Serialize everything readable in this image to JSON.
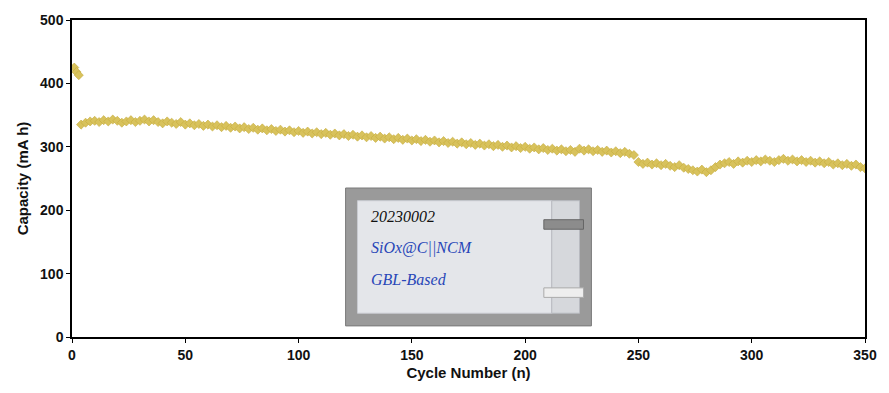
{
  "chart_data": {
    "type": "scatter",
    "x_label": "Cycle Number (n)",
    "y_label": "Capacity (mA h)",
    "color": "#d8c25c",
    "marker": "diamond",
    "grid": false,
    "xlim": [
      0,
      350
    ],
    "ylim": [
      0,
      500
    ],
    "xticks": [
      0,
      50,
      100,
      150,
      200,
      250,
      300,
      350
    ],
    "yticks": [
      0,
      100,
      200,
      300,
      400,
      500
    ],
    "annotations": [
      "20230002",
      "SiOx@C||NCM",
      "GBL-Based"
    ],
    "x": [
      1,
      2,
      3,
      4,
      6,
      8,
      10,
      12,
      14,
      16,
      18,
      20,
      22,
      24,
      26,
      28,
      30,
      32,
      34,
      36,
      38,
      40,
      42,
      44,
      46,
      48,
      50,
      52,
      54,
      56,
      58,
      60,
      62,
      64,
      66,
      68,
      70,
      72,
      74,
      76,
      78,
      80,
      82,
      84,
      86,
      88,
      90,
      92,
      94,
      96,
      98,
      100,
      102,
      104,
      106,
      108,
      110,
      112,
      114,
      116,
      118,
      120,
      122,
      124,
      126,
      128,
      130,
      132,
      134,
      136,
      138,
      140,
      142,
      144,
      146,
      148,
      150,
      152,
      154,
      156,
      158,
      160,
      162,
      164,
      166,
      168,
      170,
      172,
      174,
      176,
      178,
      180,
      182,
      184,
      186,
      188,
      190,
      192,
      194,
      196,
      198,
      200,
      202,
      204,
      206,
      208,
      210,
      212,
      214,
      216,
      218,
      220,
      222,
      224,
      226,
      228,
      230,
      232,
      234,
      236,
      238,
      240,
      242,
      244,
      246,
      248,
      250,
      252,
      254,
      256,
      258,
      260,
      262,
      264,
      266,
      268,
      270,
      272,
      274,
      276,
      278,
      280,
      282,
      284,
      286,
      288,
      290,
      292,
      294,
      296,
      298,
      300,
      302,
      304,
      306,
      308,
      310,
      312,
      314,
      316,
      318,
      320,
      322,
      324,
      326,
      328,
      330,
      332,
      334,
      336,
      338,
      340,
      342,
      344,
      346,
      348,
      350
    ],
    "values": [
      425,
      418,
      413,
      335,
      338,
      340,
      341,
      339,
      342,
      340,
      343,
      341,
      338,
      340,
      342,
      339,
      341,
      343,
      340,
      342,
      339,
      337,
      340,
      338,
      336,
      339,
      335,
      337,
      334,
      336,
      333,
      335,
      332,
      334,
      331,
      333,
      330,
      332,
      329,
      331,
      328,
      330,
      327,
      329,
      326,
      328,
      325,
      327,
      324,
      326,
      323,
      325,
      322,
      324,
      321,
      323,
      320,
      322,
      319,
      321,
      318,
      320,
      317,
      319,
      316,
      318,
      315,
      317,
      314,
      316,
      313,
      315,
      312,
      314,
      311,
      313,
      310,
      312,
      309,
      311,
      308,
      310,
      307,
      309,
      306,
      308,
      305,
      307,
      304,
      306,
      303,
      305,
      302,
      304,
      301,
      303,
      300,
      302,
      299,
      301,
      298,
      300,
      297,
      299,
      296,
      298,
      295,
      297,
      294,
      296,
      293,
      295,
      292,
      297,
      294,
      296,
      293,
      295,
      292,
      294,
      291,
      293,
      290,
      292,
      289,
      287,
      276,
      273,
      275,
      272,
      274,
      271,
      273,
      270,
      268,
      271,
      267,
      265,
      263,
      261,
      264,
      260,
      263,
      268,
      272,
      274,
      276,
      273,
      277,
      275,
      278,
      276,
      279,
      277,
      280,
      278,
      276,
      279,
      281,
      278,
      280,
      277,
      279,
      276,
      278,
      275,
      277,
      274,
      276,
      272,
      274,
      271,
      273,
      270,
      272,
      268,
      266
    ]
  }
}
